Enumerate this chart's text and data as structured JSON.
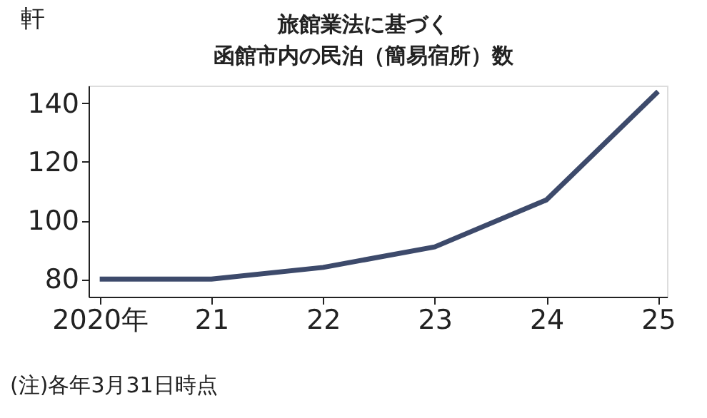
{
  "chart_data": {
    "type": "line",
    "title": [
      "旅館業法に基づく",
      "函館市内の民泊（簡易宿所）数"
    ],
    "ylabel": "軒",
    "categories": [
      "2020年",
      "21",
      "22",
      "23",
      "24",
      "25"
    ],
    "series": [
      {
        "color": "#3d4a6b",
        "values": [
          80,
          80,
          84,
          91,
          107,
          144
        ]
      }
    ],
    "ylim": [
      74,
      146
    ],
    "yticks": [
      80,
      100,
      120,
      140
    ],
    "grid": false,
    "marker": "none",
    "line_style": "solid",
    "annotations": [
      "(注)各年3月31日時点"
    ]
  }
}
